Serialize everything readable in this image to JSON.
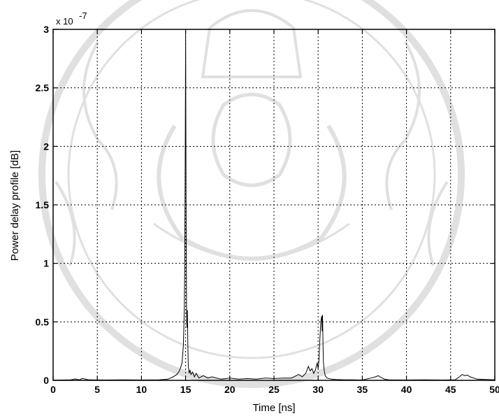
{
  "chart_data": {
    "type": "line",
    "title": "",
    "xlabel": "Time [ns]",
    "ylabel": "Power delay profile [dB]",
    "y_multiplier_label": "x 10",
    "y_multiplier_exponent": "-7",
    "xlim": [
      0,
      50
    ],
    "ylim": [
      0,
      3
    ],
    "x_ticks": [
      0,
      5,
      10,
      15,
      20,
      25,
      30,
      35,
      40,
      45,
      50
    ],
    "x_tick_labels": [
      "0",
      "5",
      "10",
      "15",
      "20",
      "25",
      "30",
      "35",
      "40",
      "45",
      "50"
    ],
    "y_ticks": [
      0,
      0.5,
      1,
      1.5,
      2,
      2.5,
      3
    ],
    "y_tick_labels": [
      "0",
      "0.5",
      "1",
      "1.5",
      "2",
      "2.5",
      "3"
    ],
    "grid": true,
    "line_color": "#000000",
    "series": [
      {
        "x": [
          0,
          2.0,
          2.5,
          3.0,
          3.3,
          4.0,
          6.0,
          8.0,
          10.0,
          12.0,
          13.0,
          13.6,
          14.0,
          14.2,
          14.4,
          14.6,
          14.75,
          14.85,
          14.9,
          14.95,
          15.0,
          15.05,
          15.1,
          15.15,
          15.2,
          15.25,
          15.3,
          15.4,
          15.5,
          15.6,
          15.8,
          16.0,
          16.2,
          16.5,
          17.0,
          17.5,
          18.0,
          19.0,
          20.0,
          21.0,
          22.0,
          23.0,
          24.0,
          25.0,
          26.0,
          27.0,
          27.8,
          28.2,
          28.6,
          28.9,
          29.1,
          29.3,
          29.5,
          29.7,
          29.9,
          30.0,
          30.1,
          30.2,
          30.3,
          30.4,
          30.45,
          30.5,
          30.55,
          30.6,
          30.7,
          30.8,
          31.0,
          31.5,
          32.0,
          33.0,
          34.0,
          35.0,
          36.0,
          36.5,
          36.8,
          37.0,
          37.5,
          38.0,
          40.0,
          42.0,
          44.0,
          45.5,
          46.0,
          46.3,
          46.6,
          46.9,
          47.2,
          48.0,
          50.0
        ],
        "y": [
          0.002,
          0.004,
          0.012,
          0.005,
          0.016,
          0.004,
          0.003,
          0.004,
          0.003,
          0.005,
          0.01,
          0.03,
          0.05,
          0.07,
          0.1,
          0.15,
          0.3,
          0.6,
          0.95,
          1.85,
          2.98,
          1.6,
          0.62,
          0.45,
          0.6,
          0.3,
          0.12,
          0.06,
          0.09,
          0.05,
          0.07,
          0.03,
          0.06,
          0.02,
          0.04,
          0.02,
          0.03,
          0.01,
          0.02,
          0.01,
          0.015,
          0.01,
          0.02,
          0.015,
          0.02,
          0.02,
          0.05,
          0.03,
          0.06,
          0.12,
          0.08,
          0.1,
          0.06,
          0.09,
          0.15,
          0.1,
          0.18,
          0.35,
          0.5,
          0.55,
          0.42,
          0.56,
          0.3,
          0.15,
          0.08,
          0.04,
          0.02,
          0.01,
          0.008,
          0.005,
          0.004,
          0.003,
          0.02,
          0.03,
          0.04,
          0.03,
          0.01,
          0.004,
          0.003,
          0.004,
          0.003,
          0.004,
          0.03,
          0.05,
          0.04,
          0.045,
          0.03,
          0.01,
          0.005
        ]
      }
    ]
  },
  "background_watermark": "มหาวิทยาลัยเทคโนโลยีราชมงคลธัญบุรี"
}
